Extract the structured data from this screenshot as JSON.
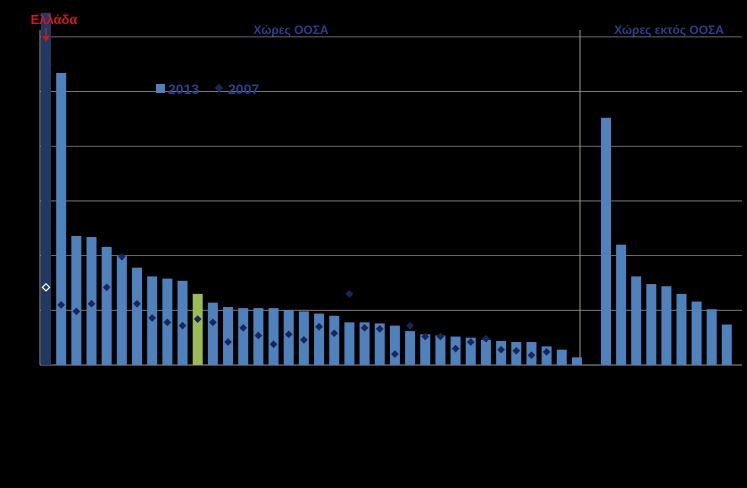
{
  "chart_data": {
    "type": "bar",
    "title": "",
    "xlabel": "",
    "ylabel": "",
    "ylim": [
      0,
      32
    ],
    "gridlines": [
      0,
      5,
      10,
      15,
      20,
      25,
      30
    ],
    "grid": true,
    "legend_placement": "top-left",
    "legend": {
      "bar": "2013",
      "marker": "2007"
    },
    "callout": "Ελλάδα",
    "groups": [
      {
        "label": "Χώρες ΟΟΣΑ",
        "bars_2013": [
          32.2,
          26.7,
          11.8,
          11.7,
          10.8,
          10.0,
          8.9,
          8.1,
          7.9,
          7.7,
          6.5,
          5.7,
          5.3,
          5.2,
          5.2,
          5.2,
          5.0,
          4.9,
          4.7,
          4.5,
          3.9,
          3.9,
          3.8,
          3.6,
          3.1,
          2.8,
          2.7,
          2.6,
          2.5,
          2.3,
          2.2,
          2.1,
          2.1,
          1.7,
          1.4,
          0.7
        ],
        "markers_2007": [
          7.1,
          5.5,
          4.9,
          5.6,
          7.1,
          9.9,
          5.6,
          4.3,
          3.9,
          3.6,
          4.2,
          3.9,
          2.1,
          3.4,
          2.7,
          1.9,
          2.8,
          2.3,
          3.5,
          2.9,
          6.5,
          3.4,
          3.3,
          1.0,
          3.6,
          2.6,
          2.6,
          1.5,
          2.1,
          2.4,
          1.4,
          1.3,
          0.9,
          1.2
        ],
        "highlight_index": 10,
        "outline_marker_index": 0
      },
      {
        "label": "Χώρες εκτός ΟΟΣΑ",
        "bars_2013": [
          22.6,
          11.0,
          8.1,
          7.4,
          7.2,
          6.5,
          5.8,
          5.1,
          3.7
        ]
      }
    ]
  },
  "colors": {
    "background": "#000000",
    "bar": "#4f81bd",
    "bar_first": "#1f3864",
    "bar_highlight": "#9bbb59",
    "marker": "#17275e",
    "marker_outline": "#ffffff",
    "header_text": "#2a3f8f",
    "callout_text": "#d01818",
    "grid": "#8a8a8a"
  }
}
